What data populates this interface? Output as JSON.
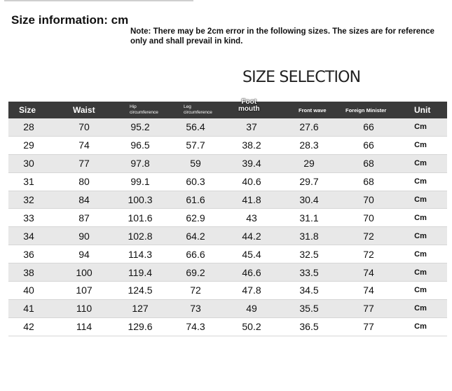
{
  "heading": "Size information: cm",
  "note": "Note: There may be 2cm error in the following sizes. The sizes are for reference only and shall prevail in kind.",
  "title": "SIZE SELECTION",
  "columns": {
    "size": "Size",
    "waist": "Waist",
    "hip_line1": "Hip",
    "hip_line2": "circumference",
    "leg_line1": "Leg",
    "leg_line2": "circumference",
    "foot_line1": "Foot",
    "foot_line2": "mouth",
    "front_wave": "Front wave",
    "foreign_minister": "Foreign Minister",
    "unit": "Unit"
  },
  "rows": [
    {
      "size": "28",
      "waist": "70",
      "hip": "95.2",
      "leg": "56.4",
      "foot": "37",
      "front": "27.6",
      "foreign": "66",
      "unit": "Cm"
    },
    {
      "size": "29",
      "waist": "74",
      "hip": "96.5",
      "leg": "57.7",
      "foot": "38.2",
      "front": "28.3",
      "foreign": "66",
      "unit": "Cm"
    },
    {
      "size": "30",
      "waist": "77",
      "hip": "97.8",
      "leg": "59",
      "foot": "39.4",
      "front": "29",
      "foreign": "68",
      "unit": "Cm"
    },
    {
      "size": "31",
      "waist": "80",
      "hip": "99.1",
      "leg": "60.3",
      "foot": "40.6",
      "front": "29.7",
      "foreign": "68",
      "unit": "Cm"
    },
    {
      "size": "32",
      "waist": "84",
      "hip": "100.3",
      "leg": "61.6",
      "foot": "41.8",
      "front": "30.4",
      "foreign": "70",
      "unit": "Cm"
    },
    {
      "size": "33",
      "waist": "87",
      "hip": "101.6",
      "leg": "62.9",
      "foot": "43",
      "front": "31.1",
      "foreign": "70",
      "unit": "Cm"
    },
    {
      "size": "34",
      "waist": "90",
      "hip": "102.8",
      "leg": "64.2",
      "foot": "44.2",
      "front": "31.8",
      "foreign": "72",
      "unit": "Cm"
    },
    {
      "size": "36",
      "waist": "94",
      "hip": "114.3",
      "leg": "66.6",
      "foot": "45.4",
      "front": "32.5",
      "foreign": "72",
      "unit": "Cm"
    },
    {
      "size": "38",
      "waist": "100",
      "hip": "119.4",
      "leg": "69.2",
      "foot": "46.6",
      "front": "33.5",
      "foreign": "74",
      "unit": "Cm"
    },
    {
      "size": "40",
      "waist": "107",
      "hip": "124.5",
      "leg": "72",
      "foot": "47.8",
      "front": "34.5",
      "foreign": "74",
      "unit": "Cm"
    },
    {
      "size": "41",
      "waist": "110",
      "hip": "127",
      "leg": "73",
      "foot": "49",
      "front": "35.5",
      "foreign": "77",
      "unit": "Cm"
    },
    {
      "size": "42",
      "waist": "114",
      "hip": "129.6",
      "leg": "74.3",
      "foot": "50.2",
      "front": "36.5",
      "foreign": "77",
      "unit": "Cm"
    }
  ]
}
